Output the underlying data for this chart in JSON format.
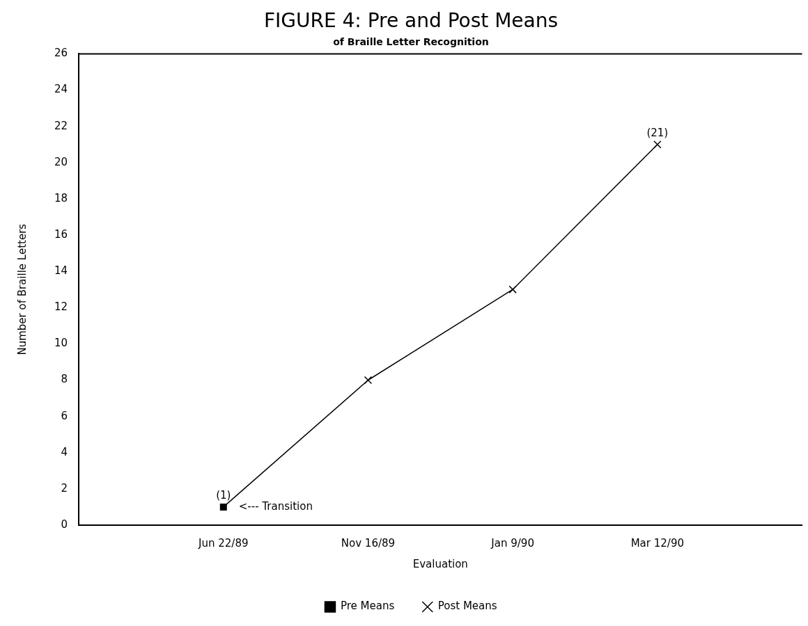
{
  "chart_data": {
    "type": "line",
    "title": "FIGURE 4: Pre and Post Means",
    "subtitle": "of Braille Letter Recognition",
    "xlabel": "Evaluation",
    "ylabel": "Number of Braille Letters",
    "categories": [
      null,
      "Jun 22/89",
      "Nov 16/89",
      "Jan 9/90",
      "Mar 12/90",
      null
    ],
    "series": [
      {
        "type": "line",
        "color": "#000000",
        "marker": "none",
        "values": [
          null,
          1,
          8,
          13,
          21,
          null
        ]
      },
      {
        "type": "scatter",
        "name": "Pre Means",
        "color": "#000000",
        "marker": "square",
        "values": [
          null,
          1,
          null,
          null,
          null,
          null
        ],
        "value_labels": [
          null,
          "(1)",
          null,
          null,
          null,
          null
        ]
      },
      {
        "type": "scatter",
        "name": "Post Means",
        "color": "#000000",
        "marker": "cross",
        "values": [
          null,
          null,
          8,
          13,
          21,
          null
        ],
        "value_labels": [
          null,
          null,
          null,
          null,
          "(21)",
          null
        ]
      }
    ],
    "annotations": [
      {
        "text": "<--- Transition",
        "x": "Jun 22/89",
        "y": 1
      }
    ],
    "ylim": [
      0,
      26
    ],
    "yticks": [
      0,
      2,
      4,
      6,
      8,
      10,
      12,
      14,
      16,
      18,
      20,
      22,
      24,
      26
    ],
    "grid": false,
    "legend": "bottom"
  }
}
